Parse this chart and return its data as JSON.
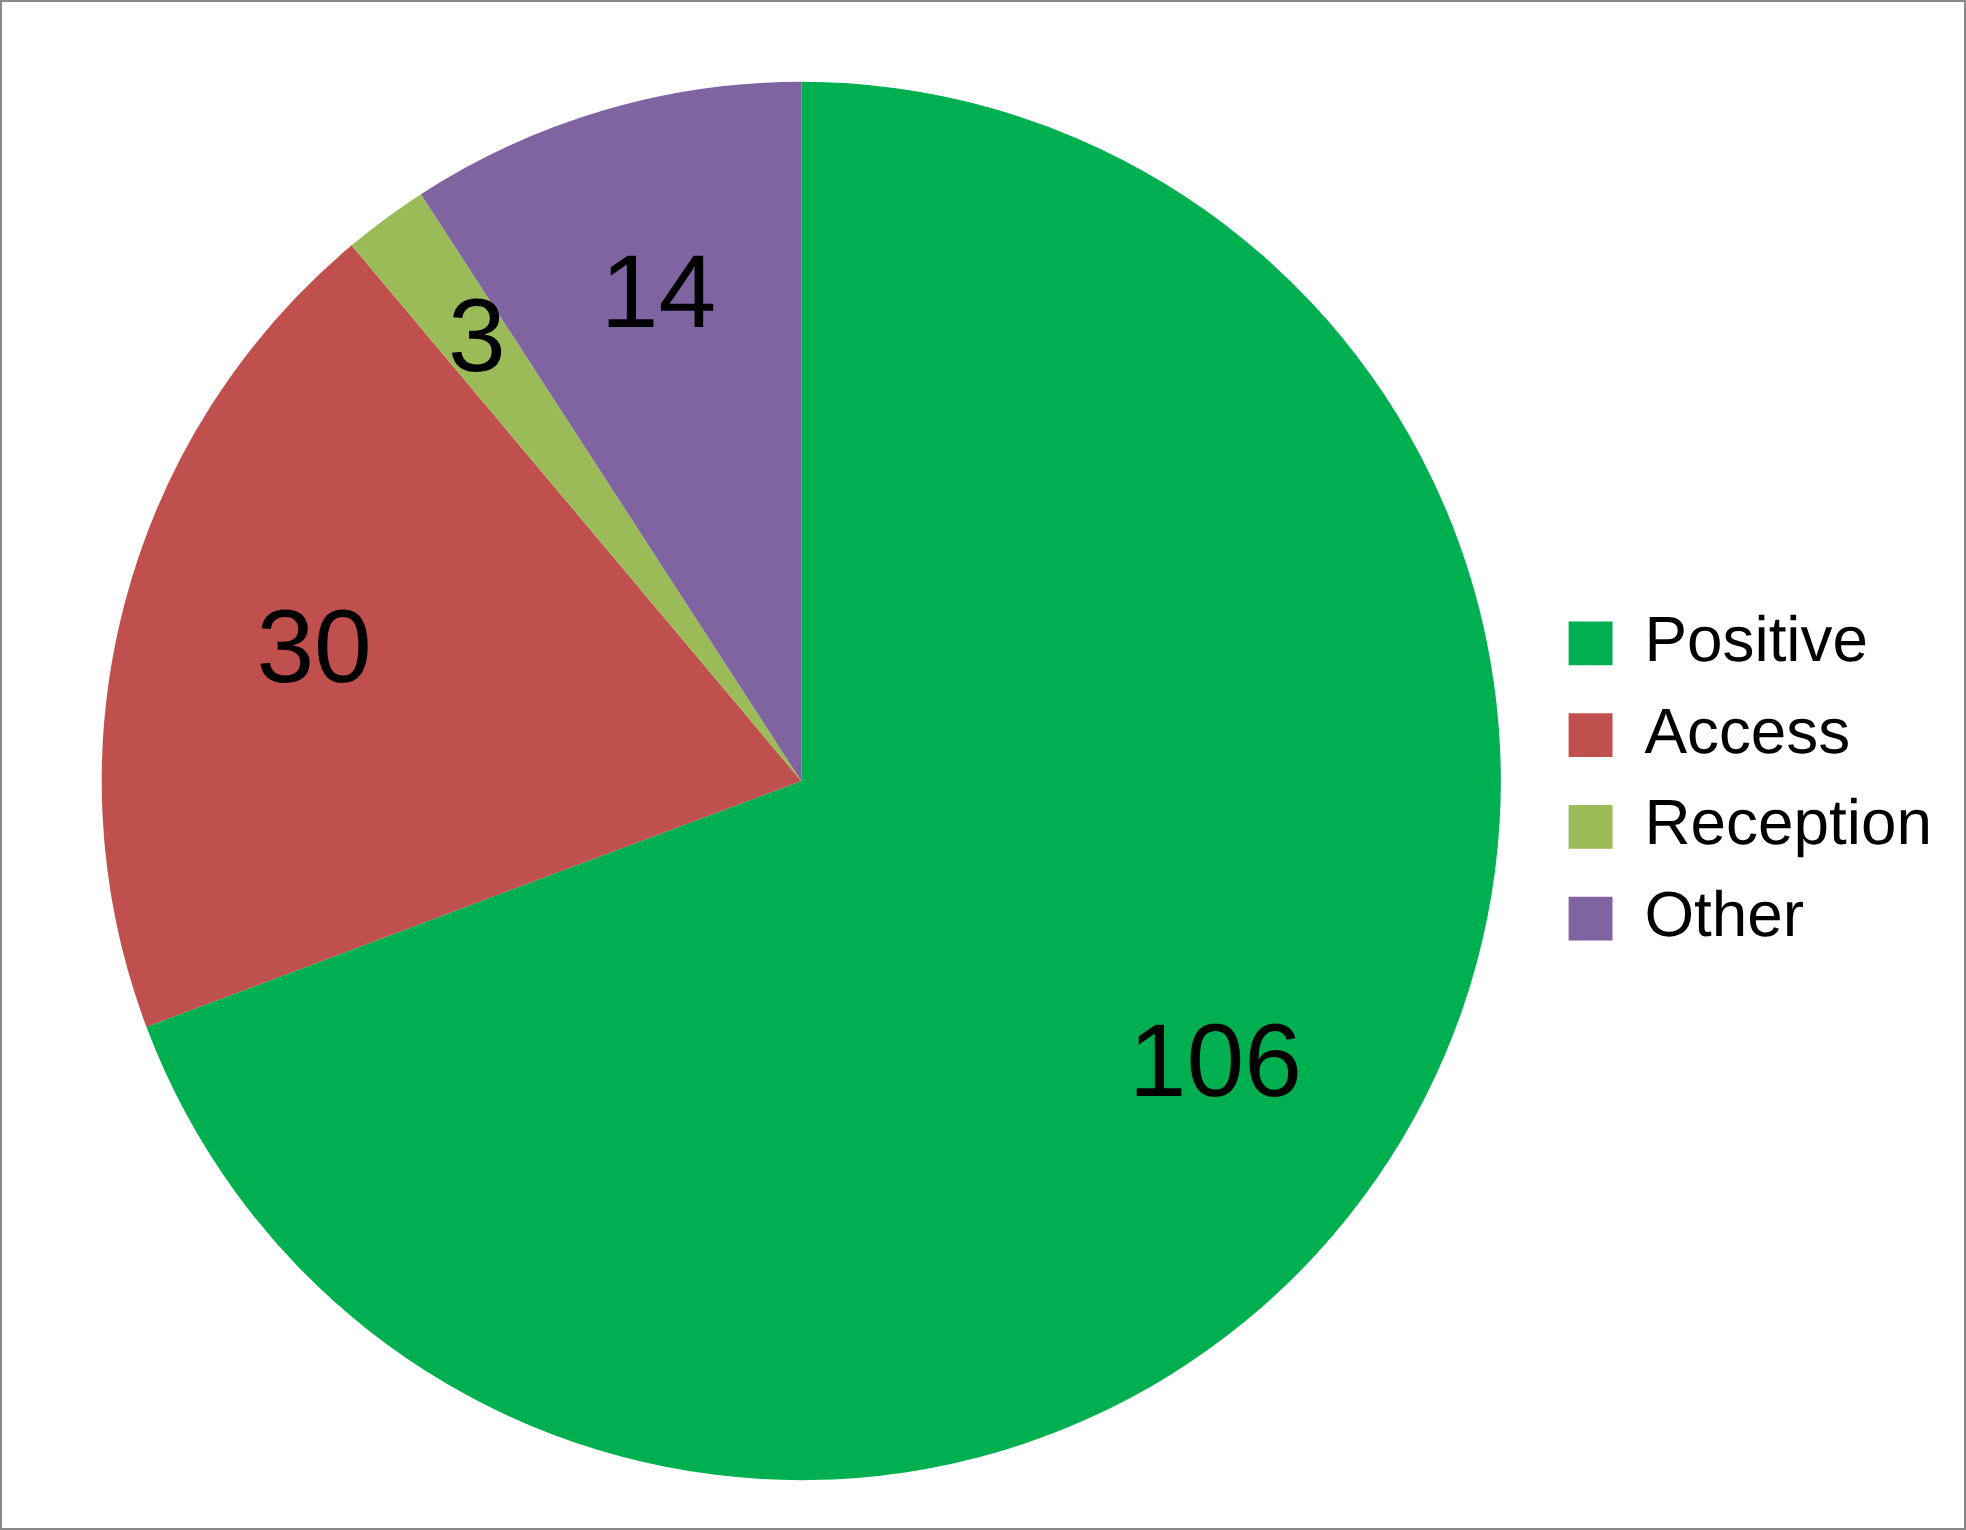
{
  "chart_data": {
    "type": "pie",
    "categories": [
      "Positive",
      "Access",
      "Reception",
      "Other"
    ],
    "values": [
      106,
      30,
      3,
      14
    ],
    "colors": [
      "#00b050",
      "#c0504d",
      "#9bbb59",
      "#8064a2"
    ],
    "data_labels": true,
    "legend": "right"
  }
}
